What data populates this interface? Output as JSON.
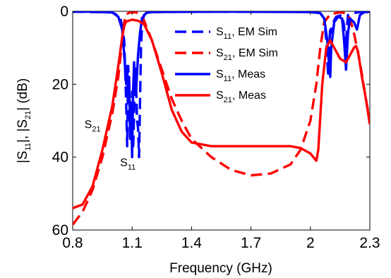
{
  "chart_data": {
    "type": "line",
    "xlabel": "Frequency (GHz)",
    "ylabel": "|S11|, |S21| (dB)",
    "xlim": [
      0.8,
      2.3
    ],
    "ylim_reversed": [
      0,
      60
    ],
    "x_ticks": [
      "0.8",
      "1.1",
      "1.4",
      "1.7",
      "2",
      "2.3"
    ],
    "y_ticks": [
      "0",
      "20",
      "40",
      "60"
    ],
    "grid": false,
    "legend_position": "top-center",
    "series": [
      {
        "name": "S11, EM Sim",
        "color": "#0000ff",
        "style": "dashed",
        "points": [
          [
            0.8,
            0.1
          ],
          [
            1.0,
            0.3
          ],
          [
            1.04,
            1.5
          ],
          [
            1.06,
            8
          ],
          [
            1.07,
            25
          ],
          [
            1.075,
            37
          ],
          [
            1.08,
            15
          ],
          [
            1.085,
            20
          ],
          [
            1.09,
            35
          ],
          [
            1.095,
            30
          ],
          [
            1.1,
            22
          ],
          [
            1.105,
            38
          ],
          [
            1.11,
            28
          ],
          [
            1.115,
            15
          ],
          [
            1.12,
            20
          ],
          [
            1.125,
            30
          ],
          [
            1.13,
            32
          ],
          [
            1.135,
            40
          ],
          [
            1.14,
            25
          ],
          [
            1.145,
            10
          ],
          [
            1.15,
            4
          ],
          [
            1.16,
            1
          ],
          [
            1.2,
            0.2
          ],
          [
            1.5,
            0.1
          ],
          [
            1.9,
            0.1
          ],
          [
            2.0,
            0.2
          ],
          [
            2.05,
            0.5
          ],
          [
            2.07,
            2
          ],
          [
            2.08,
            8
          ],
          [
            2.09,
            18
          ],
          [
            2.095,
            10
          ],
          [
            2.1,
            4
          ],
          [
            2.11,
            6
          ],
          [
            2.115,
            3
          ],
          [
            2.13,
            1.5
          ],
          [
            2.16,
            1
          ],
          [
            2.17,
            4
          ],
          [
            2.18,
            10
          ],
          [
            2.185,
            4
          ],
          [
            2.19,
            1
          ],
          [
            2.22,
            0.5
          ],
          [
            2.25,
            0.2
          ],
          [
            2.3,
            0.1
          ]
        ]
      },
      {
        "name": "S21, EM Sim",
        "color": "#ff0000",
        "style": "dashed",
        "points": [
          [
            0.8,
            58.5
          ],
          [
            0.85,
            55
          ],
          [
            0.9,
            49
          ],
          [
            0.95,
            40
          ],
          [
            1.0,
            28
          ],
          [
            1.03,
            18
          ],
          [
            1.05,
            8
          ],
          [
            1.06,
            3
          ],
          [
            1.07,
            0.8
          ],
          [
            1.09,
            0.3
          ],
          [
            1.12,
            0.3
          ],
          [
            1.14,
            0.8
          ],
          [
            1.16,
            2.5
          ],
          [
            1.2,
            8
          ],
          [
            1.25,
            16
          ],
          [
            1.3,
            24
          ],
          [
            1.35,
            30
          ],
          [
            1.4,
            35
          ],
          [
            1.5,
            40
          ],
          [
            1.6,
            43.5
          ],
          [
            1.7,
            45
          ],
          [
            1.8,
            44.5
          ],
          [
            1.9,
            42
          ],
          [
            1.95,
            38
          ],
          [
            2.0,
            30
          ],
          [
            2.03,
            20
          ],
          [
            2.05,
            10
          ],
          [
            2.07,
            3
          ],
          [
            2.1,
            0.8
          ],
          [
            2.15,
            0.3
          ],
          [
            2.18,
            0.5
          ],
          [
            2.2,
            2
          ],
          [
            2.22,
            6
          ],
          [
            2.25,
            14
          ],
          [
            2.28,
            24
          ],
          [
            2.3,
            30
          ]
        ]
      },
      {
        "name": "S11, Meas",
        "color": "#0000ff",
        "style": "solid",
        "points": [
          [
            0.8,
            0.1
          ],
          [
            0.9,
            0.1
          ],
          [
            1.0,
            0.3
          ],
          [
            1.03,
            1.5
          ],
          [
            1.05,
            5
          ],
          [
            1.06,
            12
          ],
          [
            1.07,
            20
          ],
          [
            1.075,
            15
          ],
          [
            1.08,
            25
          ],
          [
            1.085,
            18
          ],
          [
            1.09,
            35
          ],
          [
            1.095,
            25
          ],
          [
            1.1,
            40
          ],
          [
            1.105,
            22
          ],
          [
            1.11,
            14
          ],
          [
            1.115,
            18
          ],
          [
            1.12,
            22
          ],
          [
            1.13,
            12
          ],
          [
            1.14,
            6
          ],
          [
            1.15,
            2
          ],
          [
            1.17,
            0.5
          ],
          [
            1.2,
            0.2
          ],
          [
            1.6,
            0.1
          ],
          [
            2.0,
            0.2
          ],
          [
            2.05,
            0.5
          ],
          [
            2.07,
            2
          ],
          [
            2.085,
            8
          ],
          [
            2.09,
            12
          ],
          [
            2.1,
            18
          ],
          [
            2.105,
            10
          ],
          [
            2.12,
            3
          ],
          [
            2.14,
            1.5
          ],
          [
            2.16,
            2
          ],
          [
            2.17,
            8
          ],
          [
            2.18,
            16
          ],
          [
            2.19,
            6
          ],
          [
            2.2,
            2
          ],
          [
            2.22,
            3
          ],
          [
            2.235,
            5
          ],
          [
            2.25,
            1
          ],
          [
            2.27,
            0.3
          ],
          [
            2.3,
            0.1
          ]
        ]
      },
      {
        "name": "S21, Meas",
        "color": "#ff0000",
        "style": "solid",
        "points": [
          [
            0.8,
            54
          ],
          [
            0.85,
            53
          ],
          [
            0.9,
            48
          ],
          [
            0.95,
            38
          ],
          [
            1.0,
            26
          ],
          [
            1.03,
            15
          ],
          [
            1.05,
            7
          ],
          [
            1.06,
            4
          ],
          [
            1.07,
            2.8
          ],
          [
            1.1,
            2.3
          ],
          [
            1.13,
            2.6
          ],
          [
            1.16,
            3.5
          ],
          [
            1.2,
            8
          ],
          [
            1.25,
            17
          ],
          [
            1.3,
            27
          ],
          [
            1.35,
            33
          ],
          [
            1.4,
            36
          ],
          [
            1.5,
            37
          ],
          [
            1.6,
            37
          ],
          [
            1.7,
            37
          ],
          [
            1.8,
            37
          ],
          [
            1.9,
            37
          ],
          [
            1.95,
            37.5
          ],
          [
            2.0,
            39
          ],
          [
            2.03,
            41
          ],
          [
            2.04,
            38
          ],
          [
            2.06,
            20
          ],
          [
            2.08,
            10
          ],
          [
            2.1,
            8
          ],
          [
            2.12,
            10
          ],
          [
            2.15,
            13
          ],
          [
            2.18,
            14
          ],
          [
            2.2,
            12
          ],
          [
            2.22,
            10
          ],
          [
            2.23,
            9.5
          ],
          [
            2.24,
            11
          ],
          [
            2.26,
            18
          ],
          [
            2.28,
            24
          ],
          [
            2.3,
            31
          ]
        ]
      }
    ],
    "annotations": [
      {
        "base": "S",
        "sub": "21",
        "x": 0.895,
        "y": 32
      },
      {
        "base": "S",
        "sub": "11",
        "x": 1.075,
        "y": 42.5
      }
    ]
  }
}
